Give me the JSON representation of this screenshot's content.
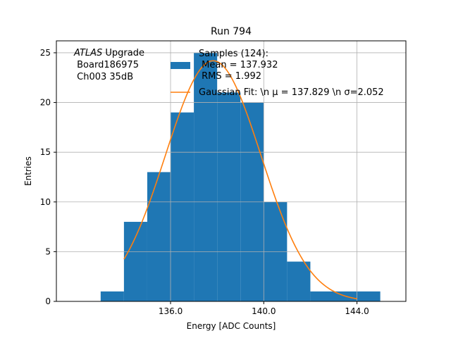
{
  "chart_data": {
    "type": "bar",
    "title": "Run 794",
    "xlabel": "Energy [ADC Counts]",
    "ylabel": "Entries",
    "xlim": [
      131.1,
      146.1
    ],
    "ylim": [
      0,
      26.2
    ],
    "grid": true,
    "x_ticks": [
      136,
      140,
      144
    ],
    "x_tick_labels": [
      "136.0",
      "140.0",
      "144.0"
    ],
    "y_ticks": [
      0,
      5,
      10,
      15,
      20,
      25
    ],
    "y_tick_labels": [
      "0",
      "5",
      "10",
      "15",
      "20",
      "25"
    ],
    "bin_edges": [
      133,
      134,
      135,
      136,
      137,
      138,
      139,
      140,
      141,
      142,
      143,
      144,
      145
    ],
    "series": [
      {
        "name": "Samples (124):\n Mean = 137.932\n RMS = 1.992",
        "type": "histogram",
        "color": "#1f77b4",
        "values": [
          1,
          8,
          13,
          19,
          25,
          21,
          20,
          10,
          4,
          1,
          1,
          1
        ]
      },
      {
        "name": "Gaussian Fit: \\n μ = 137.829 \\n σ=2.052",
        "type": "line",
        "color": "#ff7f0e",
        "amplitude": 24.2,
        "mu": 137.829,
        "sigma": 2.052,
        "x_range": [
          134,
          144
        ]
      }
    ],
    "legend_position": "top-right",
    "annotation": {
      "italic": "ATLAS",
      "lines": [
        " Upgrade",
        " Board186975",
        " Ch003 35dB"
      ]
    }
  }
}
